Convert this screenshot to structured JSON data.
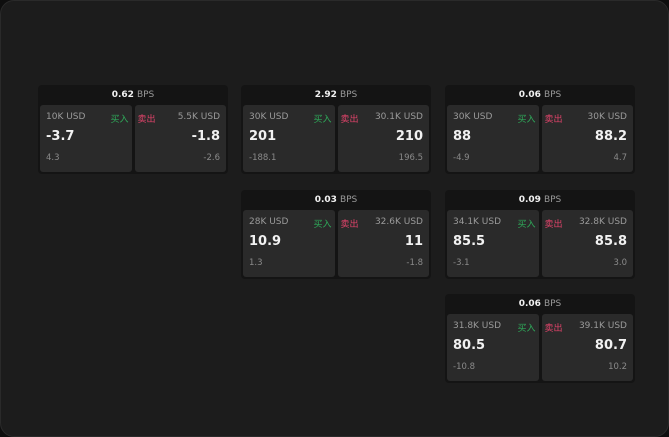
{
  "unit": "BPS",
  "buy_label": "买入",
  "sell_label": "卖出",
  "colors": {
    "buy": "#2faa5a",
    "sell": "#e0436a"
  },
  "cards": [
    {
      "spread": "0.62",
      "buy": {
        "amount": "10K USD",
        "price": "-3.7",
        "change": "4.3"
      },
      "sell": {
        "amount": "5.5K USD",
        "price": "-1.8",
        "change": "-2.6"
      }
    },
    {
      "spread": "2.92",
      "buy": {
        "amount": "30K USD",
        "price": "201",
        "change": "-188.1"
      },
      "sell": {
        "amount": "30.1K USD",
        "price": "210",
        "change": "196.5"
      }
    },
    {
      "spread": "0.06",
      "buy": {
        "amount": "30K USD",
        "price": "88",
        "change": "-4.9"
      },
      "sell": {
        "amount": "30K USD",
        "price": "88.2",
        "change": "4.7"
      }
    },
    {
      "spread": "0.03",
      "buy": {
        "amount": "28K USD",
        "price": "10.9",
        "change": "1.3"
      },
      "sell": {
        "amount": "32.6K USD",
        "price": "11",
        "change": "-1.8"
      }
    },
    {
      "spread": "0.09",
      "buy": {
        "amount": "34.1K USD",
        "price": "85.5",
        "change": "-3.1"
      },
      "sell": {
        "amount": "32.8K USD",
        "price": "85.8",
        "change": "3.0"
      }
    },
    {
      "spread": "0.06",
      "buy": {
        "amount": "31.8K USD",
        "price": "80.5",
        "change": "-10.8"
      },
      "sell": {
        "amount": "39.1K USD",
        "price": "80.7",
        "change": "10.2"
      }
    }
  ]
}
